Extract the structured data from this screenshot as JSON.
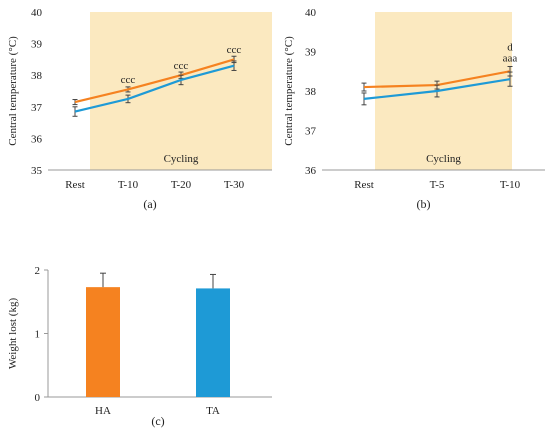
{
  "colors": {
    "series_a": "#f58220",
    "series_b": "#1e9ad6",
    "shade": "#fbe9c0",
    "axis": "#999999",
    "error": "#444444"
  },
  "chart_data": [
    {
      "id": "a",
      "panel_label": "(a)",
      "type": "line",
      "ylabel": "Central temperature (°C)",
      "ylim": [
        35,
        40
      ],
      "yticks": [
        35,
        36,
        37,
        38,
        39,
        40
      ],
      "categories": [
        "Rest",
        "T-10",
        "T-20",
        "T-30"
      ],
      "shaded_label": "Cycling",
      "shaded_range": [
        "T-10",
        "T-30"
      ],
      "series": [
        {
          "color_key": "series_a",
          "values": [
            37.15,
            37.55,
            38.0,
            38.5
          ],
          "errors": [
            0.08,
            0.08,
            0.1,
            0.1
          ]
        },
        {
          "color_key": "series_b",
          "values": [
            36.85,
            37.25,
            37.85,
            38.3
          ],
          "errors": [
            0.15,
            0.12,
            0.15,
            0.15
          ]
        }
      ],
      "annotations": [
        {
          "category": "T-10",
          "lines": [
            "ccc"
          ],
          "y": 37.75
        },
        {
          "category": "T-20",
          "lines": [
            "ccc"
          ],
          "y": 38.2
        },
        {
          "category": "T-30",
          "lines": [
            "ccc"
          ],
          "y": 38.7
        }
      ]
    },
    {
      "id": "b",
      "panel_label": "(b)",
      "type": "line",
      "ylabel": "Central temperature (°C)",
      "ylim": [
        36,
        40
      ],
      "yticks": [
        36,
        37,
        38,
        39,
        40
      ],
      "categories": [
        "Rest",
        "T-5",
        "T-10"
      ],
      "shaded_label": "Cycling",
      "shaded_range": [
        "Rest",
        "T-10"
      ],
      "series": [
        {
          "color_key": "series_a",
          "values": [
            38.1,
            38.15,
            38.5
          ],
          "errors": [
            0.1,
            0.1,
            0.12
          ]
        },
        {
          "color_key": "series_b",
          "values": [
            37.8,
            38.0,
            38.3
          ],
          "errors": [
            0.15,
            0.15,
            0.18
          ]
        }
      ],
      "annotations": [
        {
          "category": "T-10",
          "lines": [
            "d",
            "aaa"
          ],
          "y": 38.75
        }
      ]
    },
    {
      "id": "c",
      "panel_label": "(c)",
      "type": "bar",
      "ylabel": "Weight lost (kg)",
      "ylim": [
        0,
        2
      ],
      "yticks": [
        0,
        1,
        2
      ],
      "categories": [
        "HA",
        "TA"
      ],
      "values": [
        1.73,
        1.71
      ],
      "errors": [
        0.22,
        0.22
      ],
      "bar_color_keys": [
        "series_a",
        "series_b"
      ]
    }
  ]
}
